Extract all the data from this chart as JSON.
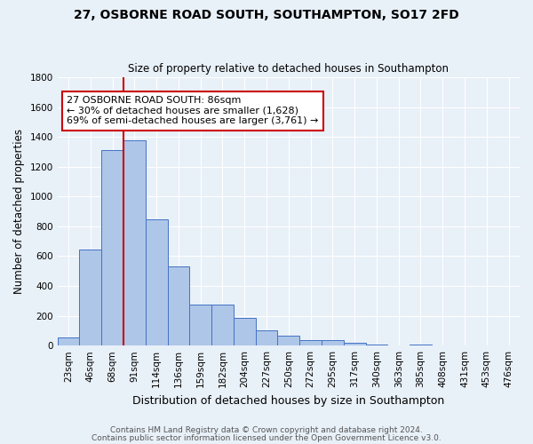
{
  "title": "27, OSBORNE ROAD SOUTH, SOUTHAMPTON, SO17 2FD",
  "subtitle": "Size of property relative to detached houses in Southampton",
  "xlabel": "Distribution of detached houses by size in Southampton",
  "ylabel": "Number of detached properties",
  "footer1": "Contains HM Land Registry data © Crown copyright and database right 2024.",
  "footer2": "Contains public sector information licensed under the Open Government Licence v3.0.",
  "annotation_title": "27 OSBORNE ROAD SOUTH: 86sqm",
  "annotation_line2": "← 30% of detached houses are smaller (1,628)",
  "annotation_line3": "69% of semi-detached houses are larger (3,761) →",
  "bar_labels": [
    "23sqm",
    "46sqm",
    "68sqm",
    "91sqm",
    "114sqm",
    "136sqm",
    "159sqm",
    "182sqm",
    "204sqm",
    "227sqm",
    "250sqm",
    "272sqm",
    "295sqm",
    "317sqm",
    "340sqm",
    "363sqm",
    "385sqm",
    "408sqm",
    "431sqm",
    "453sqm",
    "476sqm"
  ],
  "bar_values": [
    55,
    645,
    1310,
    1375,
    845,
    530,
    275,
    275,
    185,
    105,
    65,
    35,
    35,
    20,
    10,
    0,
    10,
    0,
    0,
    0,
    0
  ],
  "bar_color": "#aec6e8",
  "bar_edge_color": "#4472c4",
  "bg_color": "#e8f0f8",
  "grid_color": "#ffffff",
  "vline_position": 2.5,
  "vline_color": "#cc0000",
  "ylim": [
    0,
    1800
  ],
  "yticks": [
    0,
    200,
    400,
    600,
    800,
    1000,
    1200,
    1400,
    1600,
    1800
  ],
  "annotation_box_color": "#ffffff",
  "annotation_box_edgecolor": "#cc0000",
  "title_fontsize": 10,
  "subtitle_fontsize": 8.5,
  "ylabel_fontsize": 8.5,
  "xlabel_fontsize": 9,
  "tick_fontsize": 7.5,
  "footer_fontsize": 6.5,
  "annotation_fontsize": 8
}
